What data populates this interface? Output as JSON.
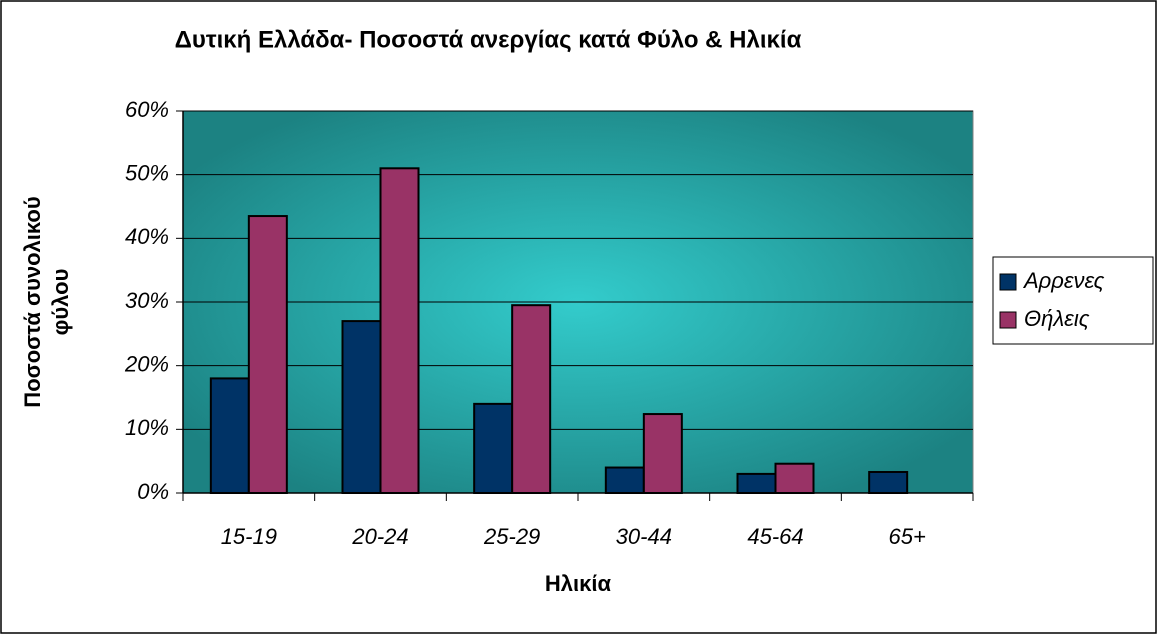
{
  "chart_data": {
    "type": "bar",
    "title": "Δυτική Ελλάδα- Ποσοστά ανεργίας κατά Φύλο & Ηλικία",
    "x_label": "Ηλικία",
    "y_label": [
      "Ποσοστά συνολικού",
      "φύλου"
    ],
    "categories": [
      "15-19",
      "20-24",
      "25-29",
      "30-44",
      "45-64",
      "65+"
    ],
    "series": [
      {
        "name": "Αρρενες",
        "color": "#003366",
        "values": [
          18,
          27,
          14,
          4,
          3,
          3.3
        ]
      },
      {
        "name": "Θήλεις",
        "color": "#993366",
        "values": [
          43.5,
          51,
          29.5,
          12.4,
          4.6,
          null
        ]
      }
    ],
    "ylim": [
      0,
      60
    ],
    "yticks": [
      {
        "value": 0,
        "label": "0%"
      },
      {
        "value": 10,
        "label": "10%"
      },
      {
        "value": 20,
        "label": "20%"
      },
      {
        "value": 30,
        "label": "30%"
      },
      {
        "value": 40,
        "label": "40%"
      },
      {
        "value": 50,
        "label": "50%"
      },
      {
        "value": 60,
        "label": "60%"
      }
    ],
    "grid": true,
    "legend": "right"
  }
}
